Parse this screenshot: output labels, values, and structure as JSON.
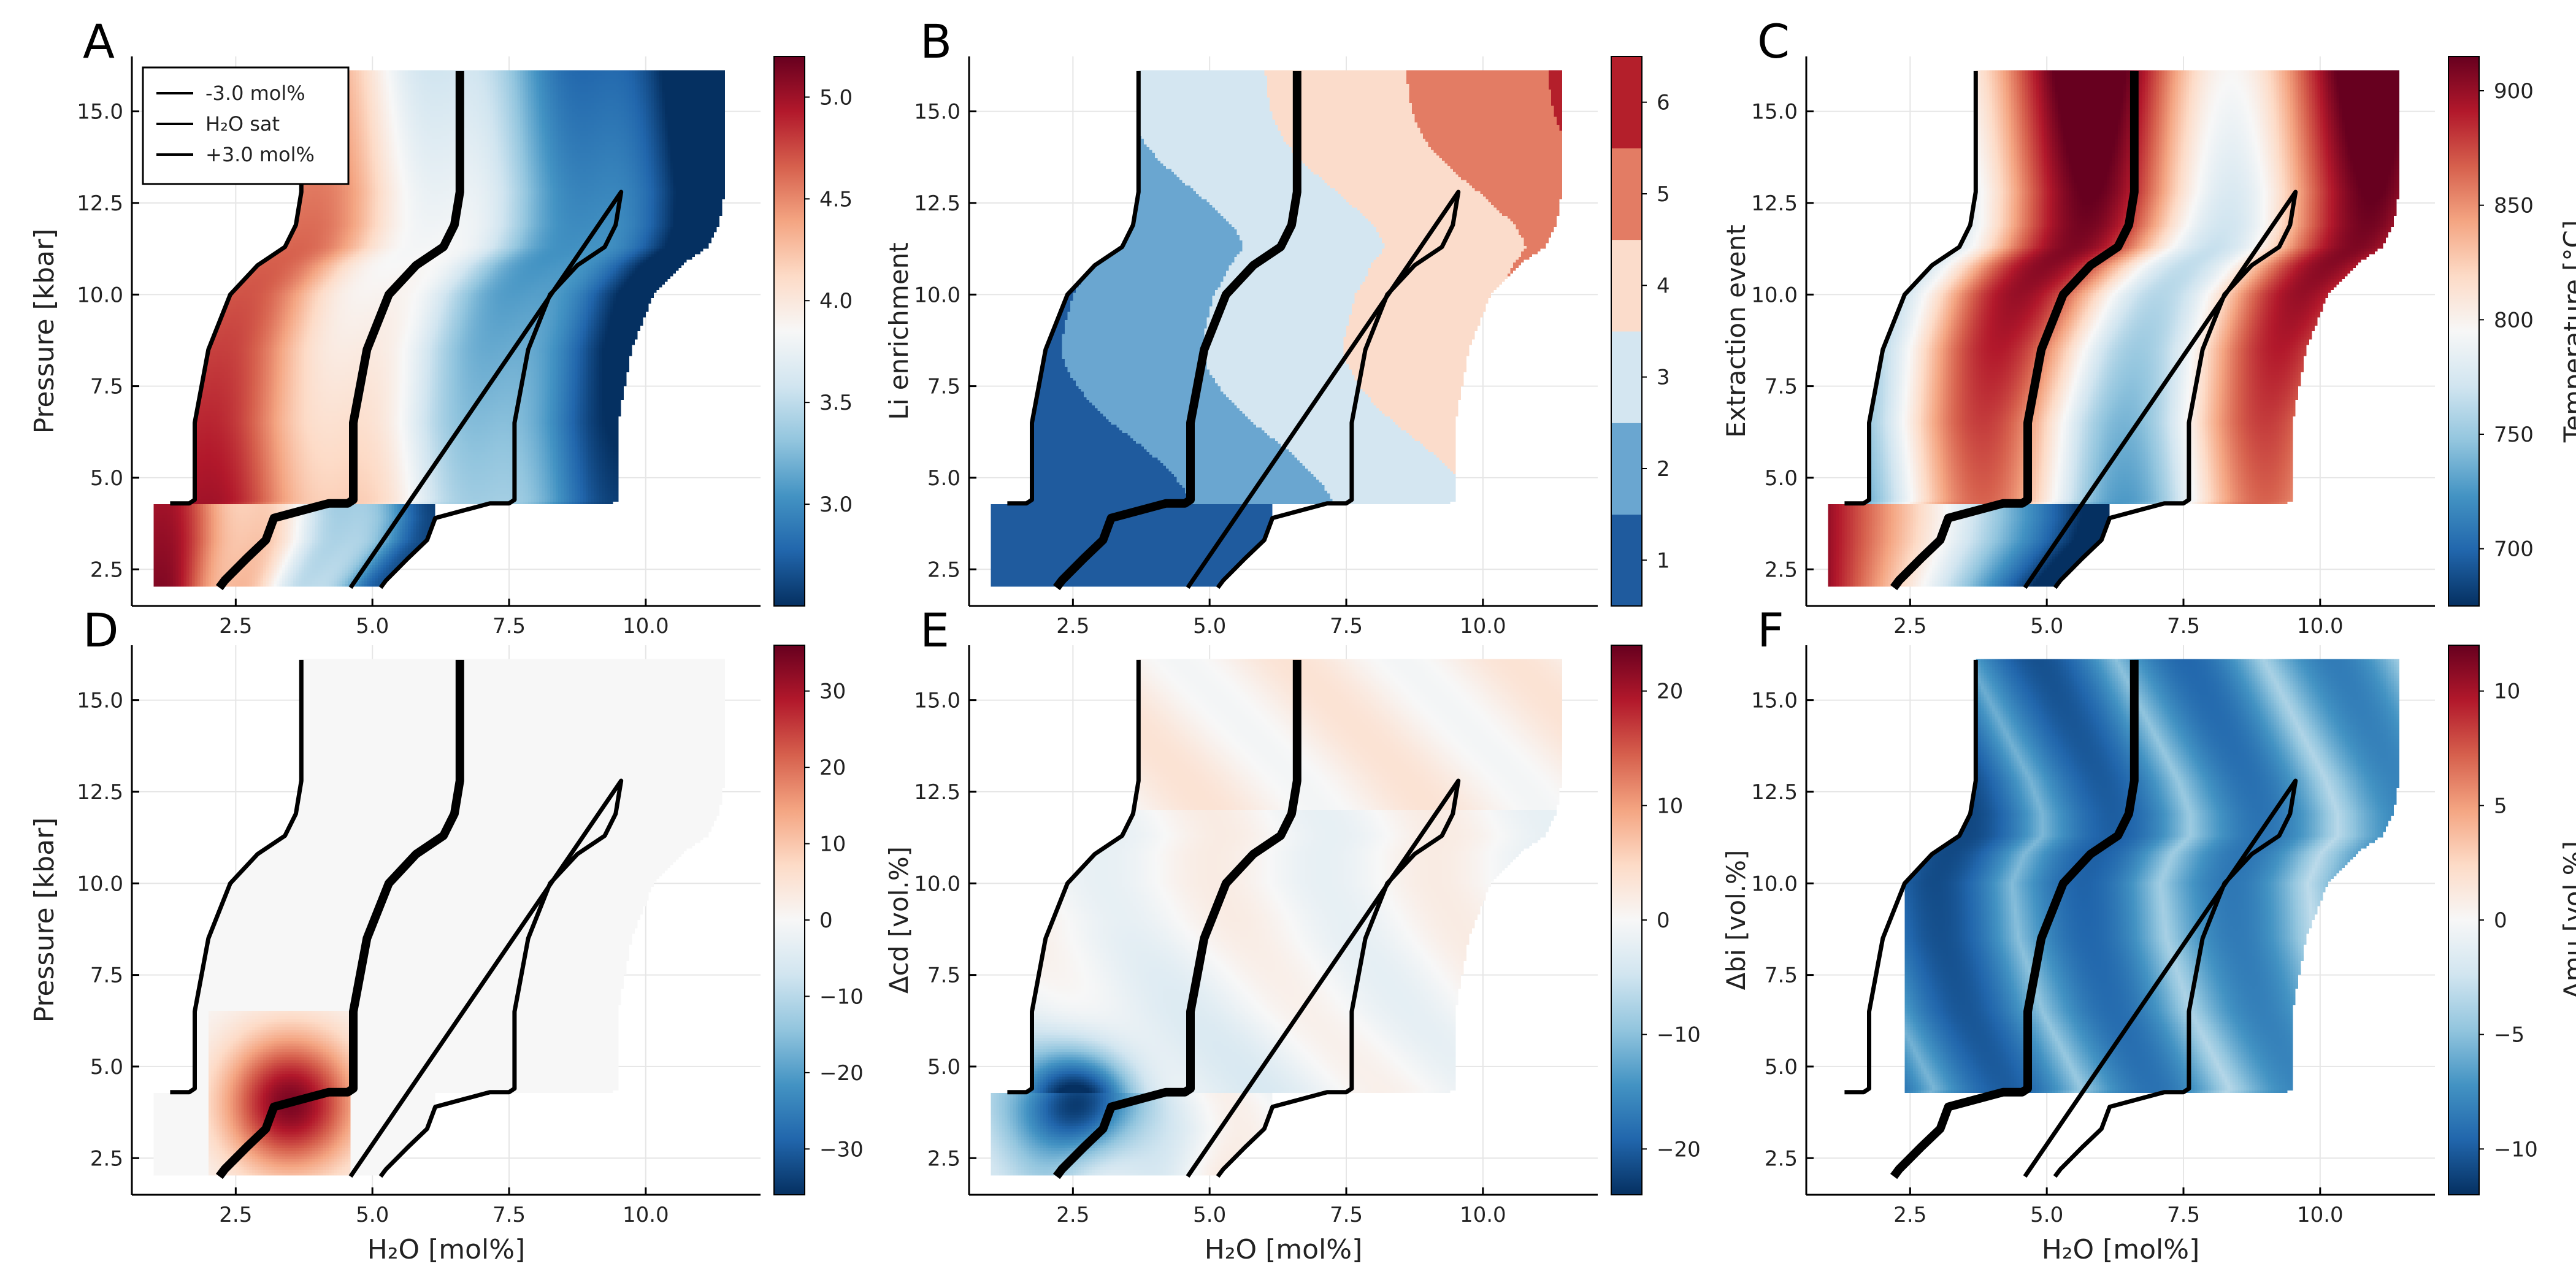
{
  "colors": {
    "rdbu": [
      "#053061",
      "#2166ac",
      "#4393c3",
      "#92c5de",
      "#d1e5f0",
      "#f7f7f7",
      "#fddbc7",
      "#f4a582",
      "#d6604d",
      "#b2182b",
      "#67001f"
    ],
    "discrete": [
      "#1f5b9e",
      "#6aa6d0",
      "#d4e6f1",
      "#fbdccb",
      "#e37c64",
      "#b41f2b"
    ],
    "line": "#000000",
    "grid": "#e6e6e6"
  },
  "shared": {
    "x_label": "H₂O [mol%]",
    "y_label": "Pressure [kbar]",
    "x_ticks": [
      "2.5",
      "5.0",
      "7.5",
      "10.0"
    ],
    "y_ticks": [
      "2.5",
      "5.0",
      "7.5",
      "10.0",
      "12.5",
      "15.0"
    ],
    "legend": [
      "-3.0 mol%",
      "H₂O sat",
      "+3.0 mol%"
    ]
  },
  "chart_data": [
    {
      "panel": "A",
      "type": "heatmap",
      "xlabel": "",
      "ylabel": "Pressure [kbar]",
      "xlim": [
        0.6,
        12.1
      ],
      "ylim": [
        1.5,
        16.5
      ],
      "colorbar": {
        "label": "Li enrichment",
        "min": 2.5,
        "max": 5.2,
        "ticks": [
          "3.0",
          "3.5",
          "4.0",
          "4.5",
          "5.0"
        ]
      },
      "field": {
        "kind": "li",
        "min": 2.5,
        "max": 5.2
      },
      "lines": [
        "-3.0 mol%",
        "H₂O sat",
        "+3.0 mol%"
      ]
    },
    {
      "panel": "B",
      "type": "heatmap",
      "xlabel": "",
      "ylabel": "",
      "xlim": [
        0.6,
        12.1
      ],
      "ylim": [
        1.5,
        16.5
      ],
      "colorbar": {
        "label": "Extraction event",
        "discrete": true,
        "min": 0.5,
        "max": 6.5,
        "ticks": [
          "1",
          "2",
          "3",
          "4",
          "5",
          "6"
        ]
      },
      "field": {
        "kind": "extraction",
        "min": 0.5,
        "max": 6.5
      },
      "lines": [
        "-3.0 mol%",
        "H₂O sat",
        "+3.0 mol%"
      ]
    },
    {
      "panel": "C",
      "type": "heatmap",
      "xlabel": "",
      "ylabel": "",
      "xlim": [
        0.6,
        12.1
      ],
      "ylim": [
        1.5,
        16.5
      ],
      "colorbar": {
        "label": "Temperature [°C]",
        "min": 675,
        "max": 915,
        "ticks": [
          "700",
          "750",
          "800",
          "850",
          "900"
        ]
      },
      "field": {
        "kind": "temp",
        "min": 675,
        "max": 915
      },
      "lines": [
        "-3.0 mol%",
        "H₂O sat",
        "+3.0 mol%"
      ]
    },
    {
      "panel": "D",
      "type": "heatmap",
      "xlabel": "H₂O [mol%]",
      "ylabel": "Pressure [kbar]",
      "xlim": [
        0.6,
        12.1
      ],
      "ylim": [
        1.5,
        16.5
      ],
      "colorbar": {
        "label": "Δcd [vol.%]",
        "min": -36,
        "max": 36,
        "ticks": [
          "−30",
          "−20",
          "−10",
          "0",
          "10",
          "20",
          "30"
        ]
      },
      "field": {
        "kind": "cd",
        "min": -36,
        "max": 36
      },
      "lines": [
        "-3.0 mol%",
        "H₂O sat",
        "+3.0 mol%"
      ]
    },
    {
      "panel": "E",
      "type": "heatmap",
      "xlabel": "H₂O [mol%]",
      "ylabel": "",
      "xlim": [
        0.6,
        12.1
      ],
      "ylim": [
        1.5,
        16.5
      ],
      "colorbar": {
        "label": "Δbi [vol.%]",
        "min": -24,
        "max": 24,
        "ticks": [
          "−20",
          "−10",
          "0",
          "10",
          "20"
        ]
      },
      "field": {
        "kind": "bi",
        "min": -24,
        "max": 24
      },
      "lines": [
        "-3.0 mol%",
        "H₂O sat",
        "+3.0 mol%"
      ]
    },
    {
      "panel": "F",
      "type": "heatmap",
      "xlabel": "H₂O [mol%]",
      "ylabel": "",
      "xlim": [
        0.6,
        12.1
      ],
      "ylim": [
        1.5,
        16.5
      ],
      "colorbar": {
        "label": "Δmu [vol.%]",
        "min": -12,
        "max": 12,
        "ticks": [
          "−10",
          "−5",
          "0",
          "5",
          "10"
        ]
      },
      "field": {
        "kind": "mu",
        "min": -12,
        "max": 12
      },
      "lines": [
        "-3.0 mol%",
        "H₂O sat",
        "+3.0 mol%"
      ]
    }
  ]
}
